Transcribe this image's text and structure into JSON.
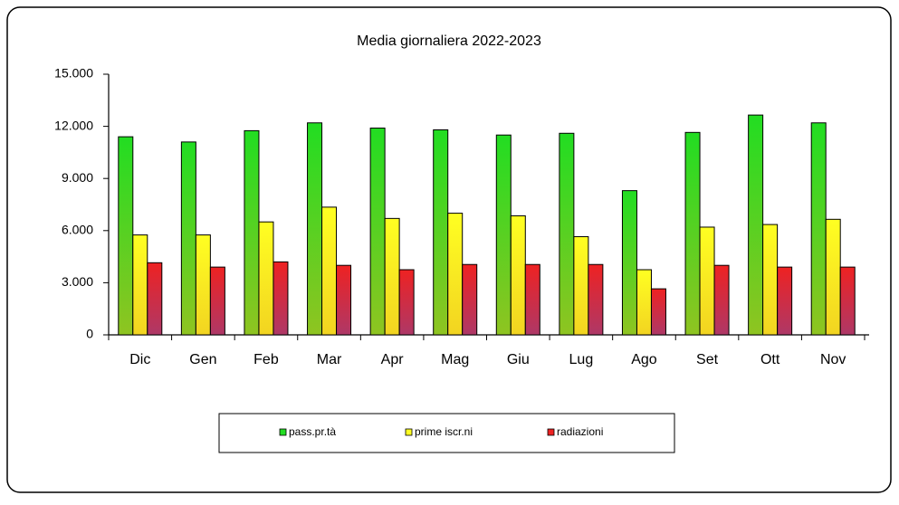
{
  "chart_data": {
    "type": "bar",
    "title": "Media giornaliera 2022-2023",
    "categories": [
      "Dic",
      "Gen",
      "Feb",
      "Mar",
      "Apr",
      "Mag",
      "Giu",
      "Lug",
      "Ago",
      "Set",
      "Ott",
      "Nov"
    ],
    "series": [
      {
        "name": "pass.pr.tà",
        "color": "#22dd22",
        "values": [
          11400,
          11100,
          11750,
          12200,
          11900,
          11800,
          11500,
          11600,
          8300,
          11650,
          12650,
          12200
        ]
      },
      {
        "name": "prime iscr.ni",
        "color": "#ffff22",
        "values": [
          5750,
          5750,
          6500,
          7350,
          6700,
          7000,
          6850,
          5650,
          3750,
          6200,
          6350,
          6650
        ]
      },
      {
        "name": "radiazioni",
        "color": "#ee2222",
        "values": [
          4150,
          3900,
          4200,
          4000,
          3750,
          4050,
          4050,
          4050,
          2650,
          4000,
          3900,
          3900
        ]
      }
    ],
    "ylim": [
      0,
      15000
    ],
    "yticks": [
      0,
      {
        "value": 3000,
        "label": "3.000"
      },
      {
        "value": 6000,
        "label": "6.000"
      },
      {
        "value": 9000,
        "label": "9.000"
      },
      {
        "value": 12000,
        "label": "12.000"
      },
      {
        "value": 15000,
        "label": "15.000"
      }
    ],
    "grid": false,
    "legend": "bottom"
  }
}
